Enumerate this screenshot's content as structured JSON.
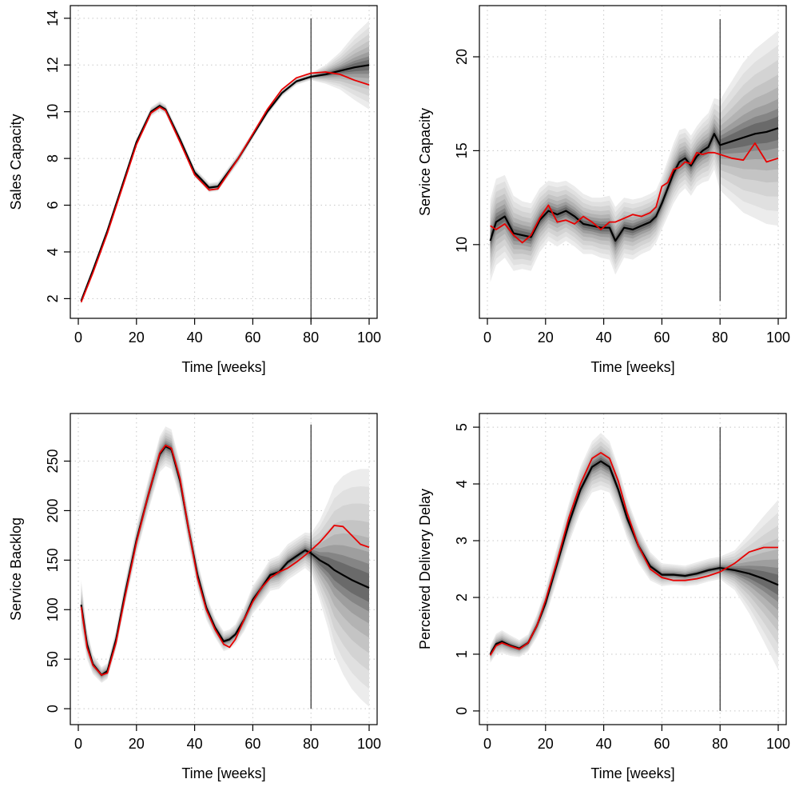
{
  "chart_data": [
    {
      "type": "line",
      "title": "",
      "xlabel": "Time [weeks]",
      "ylabel": "Sales Capacity",
      "xlim": [
        0,
        100
      ],
      "ylim": [
        1.5,
        14.2
      ],
      "xticks": [
        0,
        20,
        40,
        60,
        80,
        100
      ],
      "yticks": [
        2,
        4,
        6,
        8,
        10,
        12,
        14
      ],
      "grid": true,
      "vertical_line_x": 80,
      "vertical_line_range": [
        1,
        14
      ],
      "x": [
        1,
        5,
        10,
        15,
        20,
        25,
        28,
        30,
        35,
        40,
        45,
        48,
        55,
        60,
        65,
        70,
        75,
        80,
        85,
        90,
        95,
        100
      ],
      "series": [
        {
          "role": "posterior mean",
          "color": "#000000",
          "values": [
            1.9,
            3.2,
            4.9,
            6.8,
            8.7,
            10.0,
            10.25,
            10.1,
            8.8,
            7.4,
            6.75,
            6.8,
            8.0,
            9.0,
            10.0,
            10.8,
            11.3,
            11.5,
            11.6,
            11.75,
            11.9,
            12.0
          ]
        },
        {
          "role": "observed",
          "color": "#e80000",
          "values": [
            1.85,
            3.1,
            4.8,
            6.7,
            8.6,
            9.95,
            10.2,
            10.05,
            8.7,
            7.3,
            6.65,
            6.7,
            8.0,
            9.05,
            10.1,
            10.95,
            11.45,
            11.65,
            11.7,
            11.6,
            11.35,
            11.15
          ]
        }
      ],
      "band_halfwidth": [
        0.15,
        0.15,
        0.15,
        0.15,
        0.15,
        0.2,
        0.2,
        0.2,
        0.2,
        0.2,
        0.2,
        0.2,
        0.2,
        0.15,
        0.15,
        0.15,
        0.15,
        0.15,
        0.4,
        0.8,
        1.4,
        1.9
      ]
    },
    {
      "type": "line",
      "title": "",
      "xlabel": "Time [weeks]",
      "ylabel": "Service Capacity",
      "xlim": [
        0,
        100
      ],
      "ylim": [
        6.5,
        22.3
      ],
      "xticks": [
        0,
        20,
        40,
        60,
        80,
        100
      ],
      "yticks": [
        10,
        15,
        20
      ],
      "grid": true,
      "vertical_line_x": 80,
      "vertical_line_range": [
        7,
        22
      ],
      "x": [
        1,
        3,
        6,
        9,
        12,
        15,
        18,
        21,
        24,
        27,
        30,
        33,
        36,
        39,
        42,
        44,
        47,
        50,
        53,
        56,
        58,
        60,
        62,
        64,
        66,
        68,
        70,
        72,
        74,
        76,
        78,
        80,
        84,
        88,
        92,
        96,
        100
      ],
      "series": [
        {
          "role": "posterior mean",
          "color": "#000000",
          "values": [
            10.2,
            11.2,
            11.5,
            10.6,
            10.5,
            10.4,
            11.3,
            11.8,
            11.6,
            11.8,
            11.5,
            11.1,
            11.0,
            10.9,
            10.9,
            10.2,
            10.9,
            10.8,
            11.0,
            11.2,
            11.5,
            12.2,
            13.0,
            13.8,
            14.4,
            14.6,
            14.2,
            14.7,
            15.0,
            15.2,
            15.9,
            15.3,
            15.5,
            15.7,
            15.9,
            16.0,
            16.2
          ]
        },
        {
          "role": "observed",
          "color": "#e80000",
          "values": [
            11.0,
            10.8,
            11.1,
            10.5,
            10.1,
            10.5,
            11.4,
            12.1,
            11.2,
            11.3,
            11.1,
            11.5,
            11.2,
            10.8,
            11.2,
            11.2,
            11.4,
            11.6,
            11.5,
            11.7,
            12.0,
            13.1,
            13.3,
            14.0,
            14.1,
            14.4,
            14.3,
            14.9,
            14.8,
            14.9,
            14.9,
            14.8,
            14.6,
            14.5,
            15.4,
            14.4,
            14.6
          ]
        }
      ],
      "band_halfwidth": [
        2.2,
        2.3,
        2.2,
        2.0,
        1.8,
        1.8,
        1.7,
        1.6,
        1.7,
        1.6,
        1.6,
        1.6,
        1.5,
        1.6,
        1.7,
        1.8,
        1.6,
        1.6,
        1.5,
        1.5,
        1.4,
        1.4,
        1.5,
        1.6,
        1.7,
        1.6,
        1.6,
        1.6,
        1.7,
        1.8,
        1.9,
        2.4,
        3.2,
        4.0,
        4.5,
        4.9,
        5.2
      ]
    },
    {
      "type": "line",
      "title": "",
      "xlabel": "Time [weeks]",
      "ylabel": "Service Backlog",
      "xlim": [
        0,
        100
      ],
      "ylim": [
        -8,
        290
      ],
      "xticks": [
        0,
        20,
        40,
        60,
        80,
        100
      ],
      "yticks": [
        0,
        50,
        100,
        150,
        200,
        250
      ],
      "grid": true,
      "vertical_line_x": 80,
      "vertical_line_range": [
        0,
        287
      ],
      "x": [
        1,
        3,
        5,
        8,
        10,
        13,
        16,
        20,
        24,
        28,
        30,
        32,
        35,
        38,
        41,
        44,
        47,
        50,
        52,
        54,
        57,
        60,
        63,
        66,
        69,
        72,
        75,
        78,
        80,
        83,
        86,
        88,
        91,
        94,
        97,
        100
      ],
      "series": [
        {
          "role": "posterior mean",
          "color": "#000000",
          "values": [
            105,
            65,
            45,
            34,
            38,
            70,
            115,
            170,
            215,
            257,
            265,
            262,
            230,
            180,
            135,
            102,
            82,
            68,
            70,
            75,
            90,
            110,
            122,
            135,
            138,
            148,
            154,
            160,
            157,
            150,
            145,
            140,
            135,
            130,
            126,
            122
          ]
        },
        {
          "role": "observed",
          "color": "#e80000",
          "values": [
            103,
            62,
            44,
            34,
            36,
            67,
            112,
            168,
            215,
            258,
            266,
            263,
            232,
            180,
            132,
            100,
            80,
            65,
            62,
            70,
            90,
            108,
            122,
            132,
            138,
            142,
            148,
            155,
            160,
            168,
            178,
            185,
            184,
            175,
            166,
            163
          ]
        }
      ],
      "band_halfwidth": [
        25,
        15,
        10,
        8,
        8,
        10,
        12,
        14,
        16,
        18,
        20,
        20,
        18,
        16,
        14,
        12,
        10,
        10,
        10,
        10,
        12,
        14,
        15,
        16,
        17,
        18,
        18,
        18,
        20,
        40,
        65,
        85,
        100,
        110,
        116,
        120
      ]
    },
    {
      "type": "line",
      "title": "",
      "xlabel": "Time [weeks]",
      "ylabel": "Perceived Delivery Delay",
      "xlim": [
        0,
        100
      ],
      "ylim": [
        -0.1,
        5.1
      ],
      "xticks": [
        0,
        20,
        40,
        60,
        80,
        100
      ],
      "yticks": [
        0,
        1,
        2,
        3,
        4,
        5
      ],
      "grid": true,
      "vertical_line_x": 80,
      "vertical_line_range": [
        0,
        5
      ],
      "x": [
        1,
        3,
        5,
        8,
        11,
        14,
        17,
        20,
        24,
        28,
        32,
        36,
        39,
        42,
        45,
        48,
        52,
        56,
        60,
        64,
        68,
        72,
        76,
        80,
        85,
        90,
        95,
        100
      ],
      "series": [
        {
          "role": "posterior mean",
          "color": "#000000",
          "values": [
            1.0,
            1.18,
            1.22,
            1.15,
            1.1,
            1.2,
            1.5,
            1.9,
            2.6,
            3.3,
            3.9,
            4.3,
            4.4,
            4.3,
            3.9,
            3.4,
            2.9,
            2.55,
            2.4,
            2.4,
            2.38,
            2.42,
            2.48,
            2.52,
            2.48,
            2.42,
            2.33,
            2.22
          ]
        },
        {
          "role": "observed",
          "color": "#e80000",
          "values": [
            0.98,
            1.15,
            1.2,
            1.14,
            1.09,
            1.2,
            1.5,
            1.95,
            2.65,
            3.4,
            4.0,
            4.45,
            4.55,
            4.45,
            4.05,
            3.5,
            2.9,
            2.5,
            2.35,
            2.3,
            2.3,
            2.33,
            2.38,
            2.45,
            2.6,
            2.8,
            2.88,
            2.88
          ]
        }
      ],
      "band_halfwidth": [
        0.15,
        0.18,
        0.2,
        0.18,
        0.15,
        0.15,
        0.2,
        0.25,
        0.3,
        0.35,
        0.4,
        0.45,
        0.5,
        0.45,
        0.4,
        0.35,
        0.3,
        0.25,
        0.2,
        0.18,
        0.18,
        0.2,
        0.2,
        0.2,
        0.35,
        0.7,
        1.1,
        1.5
      ]
    }
  ]
}
